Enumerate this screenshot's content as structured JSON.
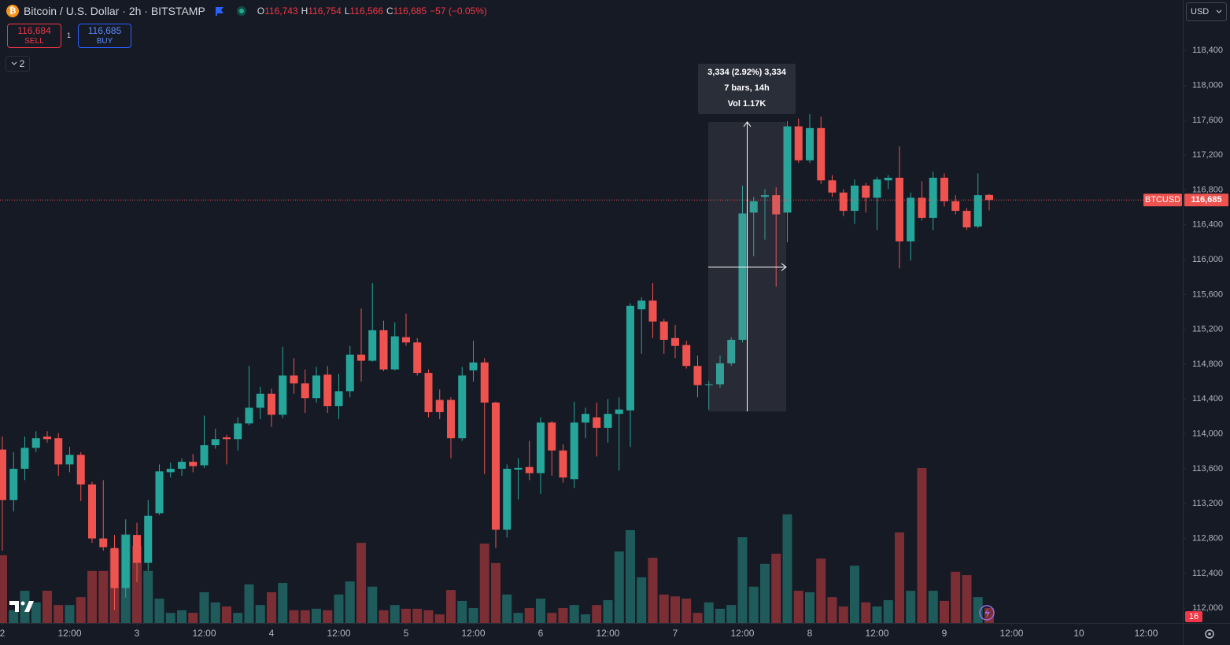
{
  "header": {
    "symbol": "Bitcoin / U.S. Dollar · 2h · BITSTAMP",
    "ohlc": [
      {
        "key": "O",
        "value": "116,743"
      },
      {
        "key": "H",
        "value": "116,754"
      },
      {
        "key": "L",
        "value": "116,566"
      },
      {
        "key": "C",
        "value": "116,685"
      }
    ],
    "change": "−57 (−0.05%)"
  },
  "trade": {
    "sell_price": "116,684",
    "sell": "SELL",
    "quantity": "1",
    "buy_price": "116,685",
    "buy": "BUY"
  },
  "indicators_count": "2",
  "currency": "USD",
  "events_count": "16",
  "measure": {
    "lines": [
      "3,334 (2.92%) 3,334",
      "7 bars, 14h",
      "Vol 1.17K"
    ]
  },
  "chart_data": {
    "type": "candlestick",
    "up_color": "#26a69a",
    "down_color": "#ef5350",
    "volume_up_color": "#1f5b5b",
    "volume_down_color": "#7b2f35",
    "grid": false,
    "x": [
      0,
      2,
      4,
      6,
      8,
      10,
      12,
      14,
      16,
      18,
      20,
      22,
      24,
      26,
      28,
      30,
      32,
      34,
      36,
      38,
      40,
      42,
      44,
      46,
      48,
      50,
      52,
      54,
      56,
      58,
      60,
      62,
      64,
      66,
      68,
      70,
      72,
      74,
      76,
      78,
      80,
      82,
      84,
      86,
      88,
      90,
      92,
      94,
      96,
      98,
      100,
      102,
      104,
      106,
      108,
      110,
      112,
      114,
      116,
      118,
      120,
      122,
      124,
      126,
      128,
      130,
      132,
      134,
      136,
      138,
      140,
      142,
      144,
      146,
      148,
      150,
      152,
      154,
      156,
      158,
      160,
      162,
      164,
      166,
      168,
      170,
      172,
      174,
      176
    ],
    "open": [
      113820,
      113240,
      113600,
      113840,
      113970,
      113950,
      113650,
      113760,
      113420,
      112800,
      112690,
      112230,
      112840,
      112520,
      113090,
      113560,
      113600,
      113680,
      113640,
      113870,
      113960,
      113940,
      114120,
      114300,
      114460,
      114220,
      114670,
      114580,
      114410,
      114680,
      114320,
      114490,
      114910,
      114840,
      115190,
      114740,
      115110,
      115050,
      114700,
      114390,
      114390,
      113950,
      114730,
      114820,
      114360,
      112900,
      113590,
      113620,
      113550,
      114130,
      113810,
      113480,
      114130,
      114190,
      114070,
      114230,
      114270,
      115430,
      115530,
      115290,
      115100,
      115020,
      114780,
      114560,
      114570,
      114810,
      115080,
      116540,
      116720,
      116740,
      116540,
      117530,
      117140,
      117510,
      116910,
      116770,
      116560,
      116850,
      116710,
      116910,
      116940,
      116210,
      116710,
      116480,
      116940,
      116670,
      116560,
      116380,
      116743
    ],
    "high": [
      113970,
      113790,
      113970,
      114030,
      114030,
      114010,
      113850,
      113790,
      113450,
      113470,
      112840,
      113020,
      112980,
      113240,
      113650,
      113670,
      113720,
      113770,
      114210,
      114060,
      113990,
      114190,
      114780,
      114540,
      114520,
      115000,
      114870,
      114740,
      114770,
      114780,
      114690,
      115010,
      115440,
      115730,
      115300,
      115280,
      115380,
      115100,
      114740,
      114510,
      114420,
      114770,
      115070,
      114870,
      114370,
      113650,
      113720,
      113920,
      114190,
      114150,
      113880,
      114370,
      114300,
      114360,
      114400,
      114420,
      115500,
      115570,
      115730,
      115320,
      115250,
      115070,
      114900,
      114610,
      114900,
      115110,
      116850,
      116720,
      116810,
      116830,
      117590,
      117620,
      117670,
      117640,
      116970,
      116810,
      116920,
      116880,
      116950,
      116970,
      117300,
      116770,
      116900,
      117010,
      116990,
      116740,
      116590,
      116990,
      116754
    ],
    "low": [
      112660,
      113110,
      113470,
      113790,
      113900,
      113520,
      113560,
      113230,
      112750,
      112660,
      111980,
      112120,
      112300,
      112430,
      113070,
      113500,
      113520,
      113560,
      113610,
      113830,
      113650,
      113810,
      114100,
      114170,
      114080,
      114180,
      114460,
      114240,
      114360,
      114240,
      114170,
      114420,
      114600,
      114830,
      114720,
      114730,
      115010,
      114670,
      114190,
      114170,
      113720,
      113920,
      114600,
      113540,
      112690,
      112810,
      113250,
      113470,
      113310,
      113520,
      113440,
      113380,
      113950,
      113740,
      113900,
      113580,
      113850,
      114920,
      115100,
      114920,
      114870,
      114750,
      114420,
      114280,
      114530,
      114780,
      115050,
      116040,
      116230,
      115690,
      116200,
      117110,
      117110,
      116870,
      116720,
      116500,
      116410,
      116540,
      116340,
      116810,
      115900,
      115990,
      116450,
      116340,
      116610,
      116520,
      116340,
      116360,
      116566
    ],
    "close": [
      113240,
      113600,
      113840,
      113950,
      113940,
      113650,
      113760,
      113420,
      112800,
      112700,
      112230,
      112840,
      112520,
      113060,
      113570,
      113600,
      113680,
      113630,
      113870,
      113940,
      113940,
      114120,
      114300,
      114460,
      114220,
      114670,
      114580,
      114410,
      114670,
      114320,
      114490,
      114910,
      114840,
      115190,
      114740,
      115120,
      115050,
      114700,
      114250,
      114250,
      113950,
      114670,
      114820,
      114360,
      112900,
      113600,
      113610,
      113550,
      114130,
      113810,
      113500,
      114130,
      114230,
      114070,
      114230,
      114280,
      115470,
      115530,
      115290,
      115080,
      115010,
      114780,
      114560,
      114570,
      114810,
      115080,
      116530,
      116670,
      116740,
      116520,
      117530,
      117140,
      117510,
      116910,
      116770,
      116560,
      116850,
      116710,
      116920,
      116940,
      116210,
      116710,
      116480,
      116940,
      116670,
      116560,
      116370,
      116740,
      116685
    ],
    "volume": {
      "ylim": [
        0,
        1000
      ],
      "values": [
        181,
        34,
        86,
        55,
        86,
        48,
        48,
        69,
        139,
        139,
        197,
        237,
        206,
        139,
        65,
        27,
        34,
        27,
        82,
        55,
        44,
        27,
        103,
        48,
        82,
        107,
        34,
        34,
        38,
        34,
        76,
        111,
        214,
        97,
        34,
        48,
        38,
        38,
        34,
        23,
        88,
        59,
        40,
        212,
        160,
        76,
        27,
        40,
        65,
        27,
        40,
        48,
        23,
        48,
        61,
        191,
        248,
        122,
        174,
        76,
        71,
        65,
        27,
        55,
        38,
        48,
        229,
        97,
        158,
        185,
        290,
        86,
        82,
        172,
        69,
        44,
        153,
        55,
        44,
        61,
        242,
        86,
        414,
        86,
        59,
        137,
        128,
        69,
        40
      ]
    },
    "last_price": {
      "name": "BTCUSD",
      "value": 116685,
      "label": "116,685"
    },
    "xlim": [
      -0.42,
      210.53
    ],
    "xticks": [
      {
        "value": 0,
        "label": "2"
      },
      {
        "value": 12,
        "label": "12:00"
      },
      {
        "value": 24,
        "label": "3"
      },
      {
        "value": 36,
        "label": "12:00"
      },
      {
        "value": 48,
        "label": "4"
      },
      {
        "value": 60,
        "label": "12:00"
      },
      {
        "value": 72,
        "label": "5"
      },
      {
        "value": 84,
        "label": "12:00"
      },
      {
        "value": 96,
        "label": "6"
      },
      {
        "value": 108,
        "label": "12:00"
      },
      {
        "value": 120,
        "label": "7"
      },
      {
        "value": 132,
        "label": "12:00"
      },
      {
        "value": 144,
        "label": "8"
      },
      {
        "value": 156,
        "label": "12:00"
      },
      {
        "value": 168,
        "label": "9"
      },
      {
        "value": 180,
        "label": "12:00"
      },
      {
        "value": 192,
        "label": "10"
      },
      {
        "value": 204,
        "label": "12:00"
      }
    ],
    "ylim": [
      111830,
      118980
    ],
    "yticks": [
      {
        "value": 112000,
        "label": "112,000"
      },
      {
        "value": 112400,
        "label": "112,400"
      },
      {
        "value": 112800,
        "label": "112,800"
      },
      {
        "value": 113200,
        "label": "113,200"
      },
      {
        "value": 113600,
        "label": "113,600"
      },
      {
        "value": 114000,
        "label": "114,000"
      },
      {
        "value": 114400,
        "label": "114,400"
      },
      {
        "value": 114800,
        "label": "114,800"
      },
      {
        "value": 115200,
        "label": "115,200"
      },
      {
        "value": 115600,
        "label": "115,600"
      },
      {
        "value": 116000,
        "label": "116,000"
      },
      {
        "value": 116400,
        "label": "116,400"
      },
      {
        "value": 116800,
        "label": "116,800"
      },
      {
        "value": 117200,
        "label": "117,200"
      },
      {
        "value": 117600,
        "label": "117,600"
      },
      {
        "value": 118000,
        "label": "118,000"
      },
      {
        "value": 118400,
        "label": "118,400"
      }
    ]
  }
}
